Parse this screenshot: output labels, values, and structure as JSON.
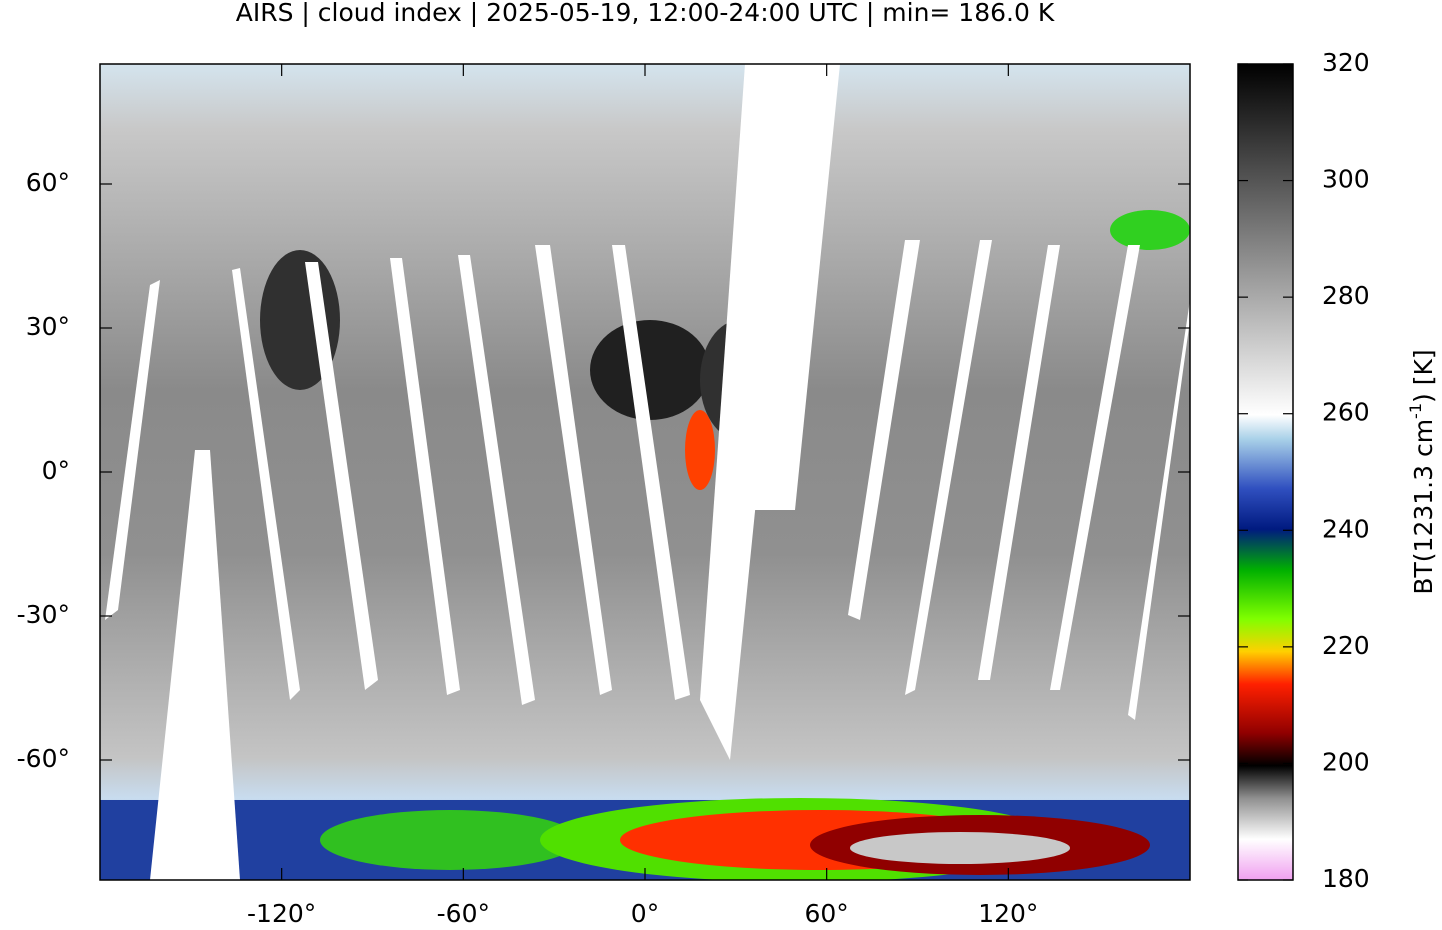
{
  "map": {
    "title": "AIRS | cloud index | 2025-05-19, 12:00-24:00 UTC | min= 186.0 K",
    "xlim": [
      -180,
      180
    ],
    "ylim": [
      -85,
      85
    ],
    "xticks": [
      {
        "value": -120,
        "label": "-120°"
      },
      {
        "value": -60,
        "label": "-60°"
      },
      {
        "value": 0,
        "label": "0°"
      },
      {
        "value": 60,
        "label": "60°"
      },
      {
        "value": 120,
        "label": "120°"
      }
    ],
    "yticks": [
      {
        "value": 60,
        "label": "60°"
      },
      {
        "value": 30,
        "label": "30°"
      },
      {
        "value": 0,
        "label": "0°"
      },
      {
        "value": -30,
        "label": "-30°"
      },
      {
        "value": -60,
        "label": "-60°"
      }
    ],
    "colorbar": {
      "lim": [
        180,
        320
      ],
      "ticks": [
        180,
        200,
        220,
        240,
        260,
        280,
        300,
        320
      ],
      "label_parts": [
        "BT(1231.3 cm",
        "-1",
        ") [K]"
      ]
    }
  }
}
